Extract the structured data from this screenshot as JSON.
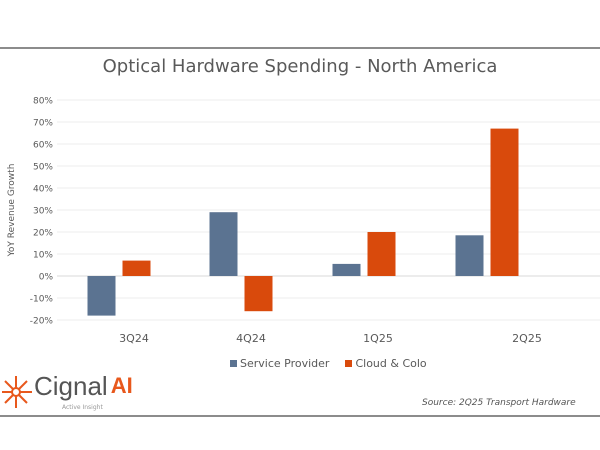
{
  "chart_data": {
    "type": "bar",
    "title": "Optical Hardware Spending - North America",
    "ylabel": "YoY Revenue Growth",
    "xlabel": "",
    "categories": [
      "3Q24",
      "4Q24",
      "1Q25",
      "2Q25"
    ],
    "series": [
      {
        "name": "Service Provider",
        "values": [
          -18,
          29,
          5.5,
          18.5
        ],
        "color": "#5b7391"
      },
      {
        "name": "Cloud & Colo",
        "values": [
          7,
          -16,
          20,
          67
        ],
        "color": "#d94a0c"
      }
    ],
    "ylim": [
      -20,
      80
    ],
    "yticks": [
      "-20%",
      "-10%",
      "0%",
      "10%",
      "20%",
      "30%",
      "40%",
      "50%",
      "60%",
      "70%",
      "80%"
    ],
    "grid": true,
    "legend": "bottom"
  },
  "branding": {
    "logo_text": "Cignal",
    "logo_ai": "AI",
    "logo_tagline": "Active Insight"
  },
  "source": "Source: 2Q25 Transport Hardware"
}
